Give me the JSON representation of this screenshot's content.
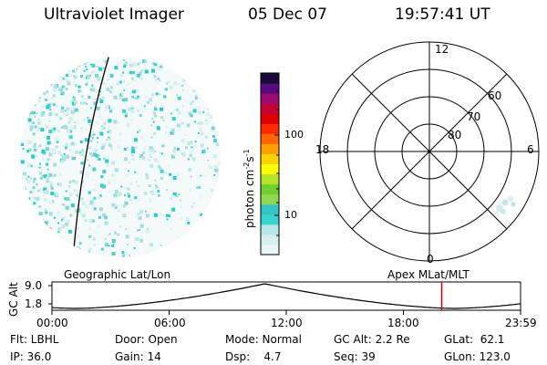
{
  "header": {
    "instrument": "Ultraviolet Imager",
    "date": "05 Dec 07",
    "time": "19:57:41 UT"
  },
  "colorbar": {
    "unit_label": "photon cm",
    "unit_sup1": "-2",
    "unit_mid": "s",
    "unit_sup2": "-1",
    "ticks": [
      "100",
      "10"
    ],
    "colors": [
      "#e9f6f6",
      "#d6efef",
      "#b8e6e6",
      "#36d5cf",
      "#33c2c7",
      "#8fd94f",
      "#6ed12f",
      "#b6e32a",
      "#ffff00",
      "#ffd200",
      "#ffa000",
      "#ff6600",
      "#ff2a00",
      "#e00000",
      "#c80038",
      "#9b0a70",
      "#5a0a80",
      "#1a0a3a"
    ]
  },
  "polar_plot": {
    "lat_labels": [
      "60",
      "70",
      "80"
    ],
    "mlt_labels": {
      "top": "12",
      "bottom": "0",
      "left": "18",
      "right": "6"
    }
  },
  "timeline": {
    "left_title": "Geographic Lat/Lon",
    "right_title": "Apex  MLat/MLT",
    "y_axis_label": "GC Alt",
    "y_max": "9.0",
    "y_min": "1.8",
    "x_ticks": [
      "00:00",
      "06:00",
      "12:00",
      "18:00",
      "23:59"
    ],
    "current_time_hours": 19.96,
    "marker_color": "#d00000"
  },
  "status": {
    "filter": "Flt: LBHL",
    "ip": "IP: 36.0",
    "door": "Door: Open",
    "gain": "Gain: 14",
    "mode": "Mode: Normal",
    "dsp": "Dsp:    4.7",
    "gc_alt": "GC Alt: 2.2 Re",
    "seq": "Seq: 39",
    "glat": "GLat:  62.1",
    "glon": "GLon: 123.0"
  }
}
